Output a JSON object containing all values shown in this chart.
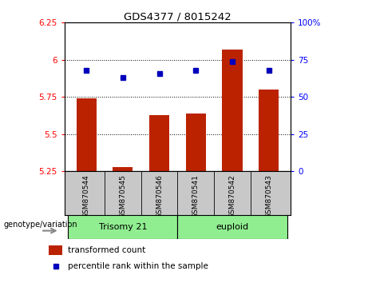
{
  "title": "GDS4377 / 8015242",
  "samples": [
    "GSM870544",
    "GSM870545",
    "GSM870546",
    "GSM870541",
    "GSM870542",
    "GSM870543"
  ],
  "red_values": [
    5.74,
    5.28,
    5.63,
    5.64,
    6.07,
    5.8
  ],
  "blue_values": [
    68,
    63,
    66,
    68,
    74,
    68
  ],
  "ylim_left": [
    5.25,
    6.25
  ],
  "ylim_right": [
    0,
    100
  ],
  "yticks_left": [
    5.25,
    5.5,
    5.75,
    6.0,
    6.25
  ],
  "yticks_right": [
    0,
    25,
    50,
    75,
    100
  ],
  "ytick_labels_left": [
    "5.25",
    "5.5",
    "5.75",
    "6",
    "6.25"
  ],
  "ytick_labels_right": [
    "0",
    "25",
    "50",
    "75",
    "100%"
  ],
  "group1_label": "Trisomy 21",
  "group2_label": "euploid",
  "group1_indices": [
    0,
    1,
    2
  ],
  "group2_indices": [
    3,
    4,
    5
  ],
  "group1_color": "#90EE90",
  "group2_color": "#90EE90",
  "bar_color": "#BB2200",
  "dot_color": "#0000BB",
  "bg_color": "#C8C8C8",
  "panel_bg": "#FFFFFF",
  "legend_red_label": "transformed count",
  "legend_blue_label": "percentile rank within the sample",
  "base_value": 5.25,
  "genotype_label": "genotype/variation"
}
